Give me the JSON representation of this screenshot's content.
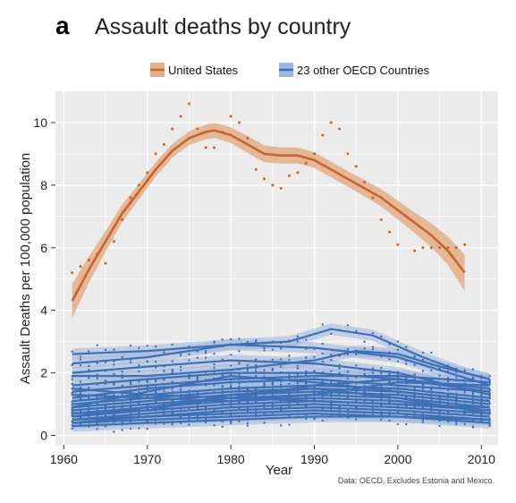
{
  "chart_data": {
    "type": "scatter",
    "panel_label": "a",
    "title": "Assault deaths by country",
    "xlabel": "Year",
    "ylabel": "Assault Deaths per 100,000 population",
    "source_note": "Data: OECD, Excludes Estonia and Mexico.",
    "xlim": [
      1959,
      2012
    ],
    "ylim": [
      -0.3,
      11.0
    ],
    "x_ticks": [
      1960,
      1970,
      1980,
      1990,
      2000,
      2010
    ],
    "y_ticks": [
      0,
      2,
      4,
      6,
      8,
      10
    ],
    "grid": true,
    "legend_position": "top",
    "colors": {
      "us": "#c8642e",
      "us_band": "#e3ae87",
      "oecd": "#3f6fb5",
      "oecd_band": "#9db7dd",
      "panel_bg": "#ebebeb",
      "grid": "#ffffff"
    },
    "series": [
      {
        "name": "United States",
        "points": [
          [
            1961,
            5.2
          ],
          [
            1962,
            5.4
          ],
          [
            1963,
            5.6
          ],
          [
            1964,
            5.8
          ],
          [
            1965,
            5.5
          ],
          [
            1966,
            6.2
          ],
          [
            1967,
            6.9
          ],
          [
            1968,
            7.6
          ],
          [
            1969,
            8.0
          ],
          [
            1970,
            8.4
          ],
          [
            1971,
            9.0
          ],
          [
            1972,
            9.3
          ],
          [
            1973,
            9.8
          ],
          [
            1974,
            10.2
          ],
          [
            1975,
            10.6
          ],
          [
            1976,
            9.8
          ],
          [
            1977,
            9.2
          ],
          [
            1978,
            9.2
          ],
          [
            1979,
            9.7
          ],
          [
            1980,
            10.2
          ],
          [
            1981,
            10.0
          ],
          [
            1982,
            9.5
          ],
          [
            1983,
            8.5
          ],
          [
            1984,
            8.2
          ],
          [
            1985,
            8.0
          ],
          [
            1986,
            7.9
          ],
          [
            1987,
            8.3
          ],
          [
            1988,
            8.4
          ],
          [
            1989,
            8.7
          ],
          [
            1990,
            9.0
          ],
          [
            1991,
            9.6
          ],
          [
            1992,
            10.0
          ],
          [
            1993,
            9.8
          ],
          [
            1994,
            9.0
          ],
          [
            1995,
            8.6
          ],
          [
            1996,
            8.1
          ],
          [
            1997,
            7.6
          ],
          [
            1998,
            6.9
          ],
          [
            1999,
            6.5
          ],
          [
            2000,
            6.1
          ],
          [
            2001,
            7.0
          ],
          [
            2002,
            5.9
          ],
          [
            2003,
            6.0
          ],
          [
            2004,
            6.0
          ],
          [
            2005,
            6.0
          ],
          [
            2006,
            6.0
          ],
          [
            2007,
            6.0
          ],
          [
            2008,
            6.1
          ]
        ],
        "smooth": [
          [
            1961,
            4.3
          ],
          [
            1963,
            5.3
          ],
          [
            1965,
            6.2
          ],
          [
            1967,
            7.1
          ],
          [
            1969,
            7.8
          ],
          [
            1971,
            8.5
          ],
          [
            1973,
            9.1
          ],
          [
            1975,
            9.5
          ],
          [
            1977,
            9.7
          ],
          [
            1978,
            9.75
          ],
          [
            1980,
            9.6
          ],
          [
            1982,
            9.3
          ],
          [
            1984,
            9.0
          ],
          [
            1986,
            8.95
          ],
          [
            1988,
            8.95
          ],
          [
            1990,
            8.8
          ],
          [
            1992,
            8.5
          ],
          [
            1994,
            8.2
          ],
          [
            1996,
            7.9
          ],
          [
            1998,
            7.6
          ],
          [
            2000,
            7.2
          ],
          [
            2002,
            6.8
          ],
          [
            2004,
            6.4
          ],
          [
            2006,
            5.9
          ],
          [
            2008,
            5.2
          ]
        ],
        "band_halfwidth": [
          0.55,
          0.42,
          0.33,
          0.28,
          0.25,
          0.23,
          0.22,
          0.22,
          0.23,
          0.24,
          0.25,
          0.27,
          0.27,
          0.26,
          0.26,
          0.25,
          0.25,
          0.25,
          0.26,
          0.28,
          0.3,
          0.33,
          0.38,
          0.45,
          0.58
        ]
      },
      {
        "name": "23 other OECD Countries",
        "lines": [
          [
            [
              1961,
              2.6
            ],
            [
              1970,
              2.7
            ],
            [
              1980,
              2.9
            ],
            [
              1990,
              2.8
            ],
            [
              2000,
              2.5
            ],
            [
              2011,
              1.6
            ]
          ],
          [
            [
              1961,
              2.3
            ],
            [
              1970,
              2.5
            ],
            [
              1980,
              2.9
            ],
            [
              1987,
              3.0
            ],
            [
              1992,
              3.4
            ],
            [
              1997,
              3.2
            ],
            [
              2003,
              2.5
            ],
            [
              2008,
              2.0
            ],
            [
              2011,
              1.8
            ]
          ],
          [
            [
              1961,
              2.0
            ],
            [
              1970,
              2.2
            ],
            [
              1980,
              2.4
            ],
            [
              1990,
              2.3
            ],
            [
              2000,
              2.0
            ],
            [
              2011,
              1.3
            ]
          ],
          [
            [
              1961,
              1.9
            ],
            [
              1970,
              1.9
            ],
            [
              1980,
              2.1
            ],
            [
              1990,
              2.4
            ],
            [
              1995,
              2.7
            ],
            [
              2000,
              2.6
            ],
            [
              2005,
              2.2
            ],
            [
              2011,
              1.8
            ]
          ],
          [
            [
              1961,
              1.6
            ],
            [
              1970,
              1.8
            ],
            [
              1980,
              2.0
            ],
            [
              1990,
              2.0
            ],
            [
              2000,
              1.8
            ],
            [
              2011,
              1.5
            ]
          ],
          [
            [
              1961,
              1.4
            ],
            [
              1970,
              1.6
            ],
            [
              1980,
              1.8
            ],
            [
              1990,
              1.9
            ],
            [
              2000,
              1.9
            ],
            [
              2011,
              1.7
            ]
          ],
          [
            [
              1961,
              1.2
            ],
            [
              1970,
              1.5
            ],
            [
              1980,
              1.7
            ],
            [
              1990,
              1.8
            ],
            [
              2000,
              1.6
            ],
            [
              2011,
              1.4
            ]
          ],
          [
            [
              1961,
              1.1
            ],
            [
              1970,
              1.3
            ],
            [
              1980,
              1.5
            ],
            [
              1990,
              1.6
            ],
            [
              2000,
              1.5
            ],
            [
              2011,
              1.2
            ]
          ],
          [
            [
              1961,
              1.0
            ],
            [
              1970,
              1.2
            ],
            [
              1980,
              1.4
            ],
            [
              1990,
              1.5
            ],
            [
              2000,
              1.4
            ],
            [
              2011,
              1.1
            ]
          ],
          [
            [
              1961,
              0.9
            ],
            [
              1970,
              1.1
            ],
            [
              1980,
              1.3
            ],
            [
              1990,
              1.4
            ],
            [
              2000,
              1.3
            ],
            [
              2011,
              1.0
            ]
          ],
          [
            [
              1961,
              0.8
            ],
            [
              1970,
              1.0
            ],
            [
              1980,
              1.2
            ],
            [
              1990,
              1.3
            ],
            [
              2000,
              1.2
            ],
            [
              2011,
              0.9
            ]
          ],
          [
            [
              1961,
              0.7
            ],
            [
              1970,
              0.9
            ],
            [
              1980,
              1.1
            ],
            [
              1990,
              1.2
            ],
            [
              2000,
              1.1
            ],
            [
              2011,
              0.8
            ]
          ],
          [
            [
              1961,
              0.6
            ],
            [
              1970,
              0.8
            ],
            [
              1980,
              1.0
            ],
            [
              1990,
              1.1
            ],
            [
              2000,
              1.0
            ],
            [
              2011,
              0.8
            ]
          ],
          [
            [
              1961,
              0.5
            ],
            [
              1970,
              0.7
            ],
            [
              1980,
              0.9
            ],
            [
              1990,
              1.0
            ],
            [
              2000,
              0.9
            ],
            [
              2011,
              0.7
            ]
          ],
          [
            [
              1961,
              0.5
            ],
            [
              1970,
              0.6
            ],
            [
              1980,
              0.8
            ],
            [
              1990,
              0.9
            ],
            [
              2000,
              0.8
            ],
            [
              2011,
              0.6
            ]
          ],
          [
            [
              1961,
              0.4
            ],
            [
              1970,
              0.6
            ],
            [
              1980,
              0.7
            ],
            [
              1990,
              0.8
            ],
            [
              2000,
              0.7
            ],
            [
              2011,
              0.5
            ]
          ],
          [
            [
              1961,
              0.4
            ],
            [
              1970,
              0.5
            ],
            [
              1980,
              0.6
            ],
            [
              1990,
              0.7
            ],
            [
              2000,
              0.6
            ],
            [
              2011,
              0.5
            ]
          ],
          [
            [
              1961,
              0.3
            ],
            [
              1970,
              0.4
            ],
            [
              1980,
              0.5
            ],
            [
              1990,
              0.6
            ],
            [
              2000,
              0.6
            ],
            [
              2011,
              0.4
            ]
          ],
          [
            [
              1961,
              0.9
            ],
            [
              1970,
              1.4
            ],
            [
              1980,
              1.9
            ],
            [
              1990,
              1.7
            ],
            [
              2000,
              1.4
            ],
            [
              2011,
              1.1
            ]
          ],
          [
            [
              1961,
              1.3
            ],
            [
              1970,
              1.2
            ],
            [
              1980,
              1.1
            ],
            [
              1990,
              1.3
            ],
            [
              2000,
              1.7
            ],
            [
              2011,
              1.6
            ]
          ],
          [
            [
              1961,
              0.6
            ],
            [
              1970,
              0.9
            ],
            [
              1980,
              1.2
            ],
            [
              1990,
              1.6
            ],
            [
              2000,
              1.8
            ],
            [
              2011,
              1.4
            ]
          ],
          [
            [
              1961,
              1.5
            ],
            [
              1970,
              1.3
            ],
            [
              1980,
              1.2
            ],
            [
              1990,
              1.1
            ],
            [
              2000,
              1.0
            ],
            [
              2011,
              0.9
            ]
          ],
          [
            [
              1961,
              0.7
            ],
            [
              1970,
              0.8
            ],
            [
              1980,
              1.3
            ],
            [
              1990,
              1.5
            ],
            [
              2000,
              1.2
            ],
            [
              2011,
              0.7
            ]
          ]
        ]
      }
    ]
  }
}
